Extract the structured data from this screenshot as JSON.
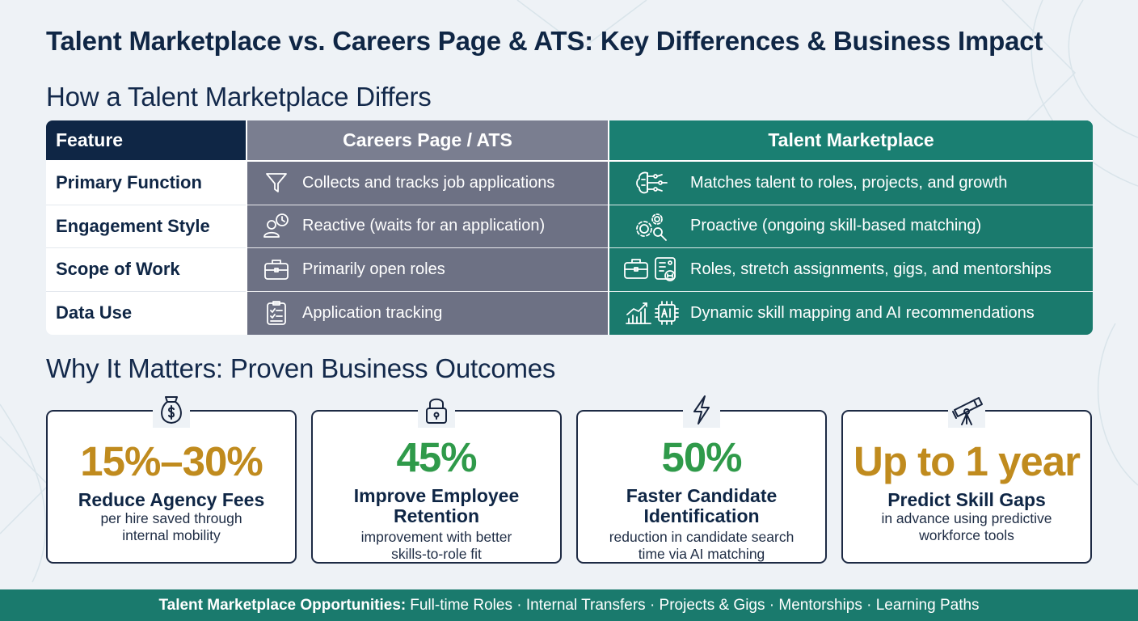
{
  "title": "Talent Marketplace vs. Careers Page & ATS: Key Differences & Business Impact",
  "section1_title": "How a Talent Marketplace Differs",
  "section2_title": "Why It Matters: Proven Business Outcomes",
  "table": {
    "headers": {
      "feature": "Feature",
      "careers": "Careers Page / ATS",
      "marketplace": "Talent Marketplace"
    },
    "rows": [
      {
        "feature": "Primary Function",
        "careers": "Collects and tracks job applications",
        "careers_icon": "funnel-icon",
        "marketplace": "Matches talent to roles, projects, and growth",
        "marketplace_icon": "brain-network-icon"
      },
      {
        "feature": "Engagement Style",
        "careers": "Reactive (waits for an application)",
        "careers_icon": "user-clock-icon",
        "marketplace": "Proactive (ongoing skill-based matching)",
        "marketplace_icon": "gears-search-icon"
      },
      {
        "feature": "Scope of Work",
        "careers": "Primarily open roles",
        "careers_icon": "briefcase-icon",
        "marketplace": "Roles, stretch assignments, gigs, and mentorships",
        "marketplace_icon": "briefcase-profile-icon"
      },
      {
        "feature": "Data Use",
        "careers": "Application tracking",
        "careers_icon": "checklist-icon",
        "marketplace": "Dynamic skill mapping and AI recommendations",
        "marketplace_icon": "growth-chart-ai-chip-icon"
      }
    ]
  },
  "outcomes": [
    {
      "icon": "money-bag-icon",
      "metric": "15%–30%",
      "metric_color": "#c08b1e",
      "title": "Reduce Agency Fees",
      "desc_lines": [
        "per hire saved through",
        "internal mobility"
      ]
    },
    {
      "icon": "lock-icon",
      "metric": "45%",
      "metric_color": "#2f9a4a",
      "title_lines": [
        "Improve Employee",
        "Retention"
      ],
      "desc_lines": [
        "improvement with better",
        "skills-to-role fit"
      ]
    },
    {
      "icon": "lightning-icon",
      "metric": "50%",
      "metric_color": "#2f9a4a",
      "title_lines": [
        "Faster Candidate",
        "Identification"
      ],
      "desc_lines": [
        "reduction in candidate search",
        "time via AI matching"
      ]
    },
    {
      "icon": "telescope-icon",
      "metric": "Up to 1 year",
      "metric_color": "#c08b1e",
      "title": "Predict Skill Gaps",
      "desc_lines": [
        "in advance using predictive",
        "workforce tools"
      ]
    }
  ],
  "footer": {
    "label": "Talent Marketplace Opportunities:",
    "items": "Full-time Roles · Internal Transfers · Projects & Gigs · Mentorships · Learning Paths"
  },
  "colors": {
    "navy": "#0f2645",
    "slate": "#6d7184",
    "teal": "#1a7a6d",
    "gold": "#c08b1e",
    "green": "#2f9a4a"
  }
}
